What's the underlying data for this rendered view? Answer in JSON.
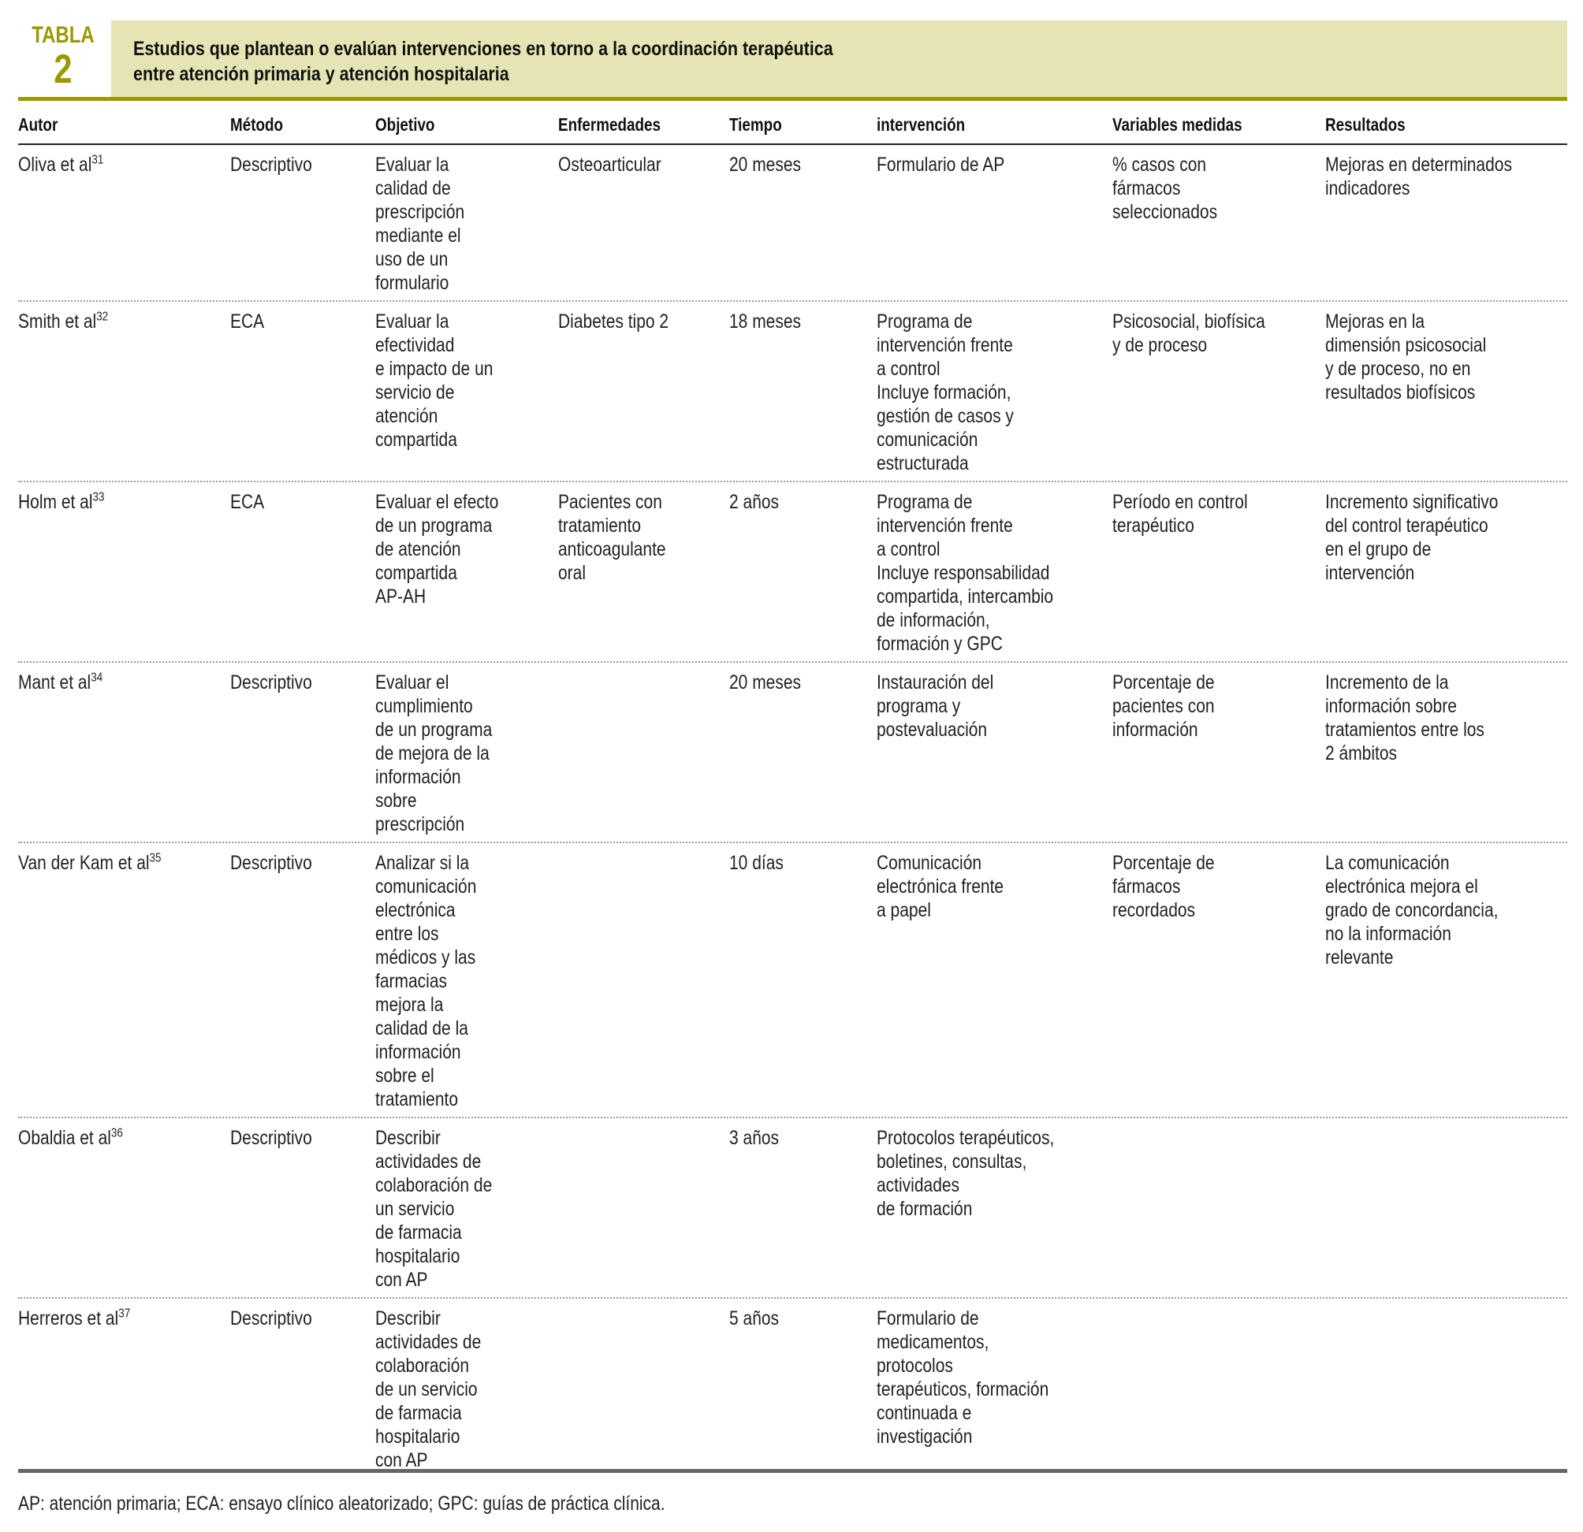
{
  "table_label": {
    "word": "TABLA",
    "number": "2"
  },
  "title_lines": [
    "Estudios que plantean o evalúan intervenciones en torno a la coordinación terapéutica",
    "entre atención primaria y atención hospitalaria"
  ],
  "colors": {
    "accent": "#9a9a00",
    "band": "#e4e4b4"
  },
  "columns": [
    "Autor",
    "Método",
    "Objetivo",
    "Enfermedades",
    "Tiempo",
    "intervención",
    "Variables medidas",
    "Resultados"
  ],
  "rows": [
    {
      "autor": {
        "name": "Oliva et al",
        "ref": "31"
      },
      "metodo": [
        "Descriptivo"
      ],
      "objetivo": [
        "Evaluar la",
        "calidad de",
        "prescripción",
        "mediante el",
        "uso de un",
        "formulario"
      ],
      "enfermedades": [
        "Osteoarticular"
      ],
      "tiempo": [
        "20 meses"
      ],
      "intervencion": [
        "Formulario de AP"
      ],
      "variables": [
        "% casos con",
        "fármacos",
        "seleccionados"
      ],
      "resultados": [
        "Mejoras en determinados",
        "indicadores"
      ]
    },
    {
      "autor": {
        "name": "Smith et al",
        "ref": "32"
      },
      "metodo": [
        "ECA"
      ],
      "objetivo": [
        "Evaluar la",
        "efectividad",
        "e impacto de un",
        "servicio de",
        "atención",
        "compartida"
      ],
      "enfermedades": [
        "Diabetes tipo 2"
      ],
      "tiempo": [
        "18 meses"
      ],
      "intervencion": [
        "Programa de",
        "intervención frente",
        "a control",
        "Incluye formación,",
        "gestión de casos y",
        "comunicación",
        "estructurada"
      ],
      "variables": [
        "Psicosocial, biofísica",
        "y de proceso"
      ],
      "resultados": [
        "Mejoras en la",
        "dimensión psicosocial",
        "y de proceso, no en",
        "resultados biofísicos"
      ]
    },
    {
      "autor": {
        "name": "Holm et al",
        "ref": "33"
      },
      "metodo": [
        "ECA"
      ],
      "objetivo": [
        "Evaluar el efecto",
        "de un programa",
        "de atención",
        "compartida",
        "AP-AH"
      ],
      "enfermedades": [
        "Pacientes con",
        "tratamiento",
        "anticoagulante",
        "oral"
      ],
      "tiempo": [
        "2 años"
      ],
      "intervencion": [
        "Programa de",
        "intervención frente",
        "a control",
        "Incluye responsabilidad",
        "compartida, intercambio",
        "de información,",
        "formación y GPC"
      ],
      "variables": [
        "Período en control",
        "terapéutico"
      ],
      "resultados": [
        "Incremento significativo",
        "del control terapéutico",
        "en el grupo de",
        "intervención"
      ]
    },
    {
      "autor": {
        "name": "Mant et al",
        "ref": "34"
      },
      "metodo": [
        "Descriptivo"
      ],
      "objetivo": [
        "Evaluar el",
        "cumplimiento",
        "de un programa",
        "de mejora de la",
        "información",
        "sobre",
        "prescripción"
      ],
      "enfermedades": [],
      "tiempo": [
        "20 meses"
      ],
      "intervencion": [
        "Instauración del",
        "programa y",
        "postevaluación"
      ],
      "variables": [
        "Porcentaje de",
        "pacientes con",
        "información"
      ],
      "resultados": [
        "Incremento de la",
        "información sobre",
        "tratamientos entre los",
        "2 ámbitos"
      ]
    },
    {
      "autor": {
        "name": "Van der Kam et al",
        "ref": "35"
      },
      "metodo": [
        "Descriptivo"
      ],
      "objetivo": [
        "Analizar si la",
        "comunicación",
        "electrónica",
        "entre los",
        "médicos y las",
        "farmacias",
        "mejora la",
        "calidad de la",
        "información",
        "sobre el",
        "tratamiento"
      ],
      "enfermedades": [],
      "tiempo": [
        "10 días"
      ],
      "intervencion": [
        "Comunicación",
        "electrónica frente",
        "a papel"
      ],
      "variables": [
        "Porcentaje de",
        "fármacos",
        "recordados"
      ],
      "resultados": [
        "La comunicación",
        "electrónica mejora el",
        "grado de concordancia,",
        "no la información",
        "relevante"
      ]
    },
    {
      "autor": {
        "name": "Obaldia et al",
        "ref": "36"
      },
      "metodo": [
        "Descriptivo"
      ],
      "objetivo": [
        "Describir",
        "actividades de",
        "colaboración de",
        "un servicio",
        "de farmacia",
        "hospitalario",
        "con AP"
      ],
      "enfermedades": [],
      "tiempo": [
        "3 años"
      ],
      "intervencion": [
        "Protocolos terapéuticos,",
        "boletines, consultas,",
        "actividades",
        "de formación"
      ],
      "variables": [],
      "resultados": []
    },
    {
      "autor": {
        "name": "Herreros et al",
        "ref": "37"
      },
      "metodo": [
        "Descriptivo"
      ],
      "objetivo": [
        "Describir",
        "actividades de",
        "colaboración",
        "de un servicio",
        "de farmacia",
        "hospitalario",
        "con AP"
      ],
      "enfermedades": [],
      "tiempo": [
        "5 años"
      ],
      "intervencion": [
        "Formulario de",
        "medicamentos,",
        "protocolos",
        "terapéuticos, formación",
        "continuada e",
        "investigación"
      ],
      "variables": [],
      "resultados": []
    }
  ],
  "footnote": "AP: atención primaria; ECA: ensayo clínico aleatorizado; GPC: guías de práctica clínica."
}
